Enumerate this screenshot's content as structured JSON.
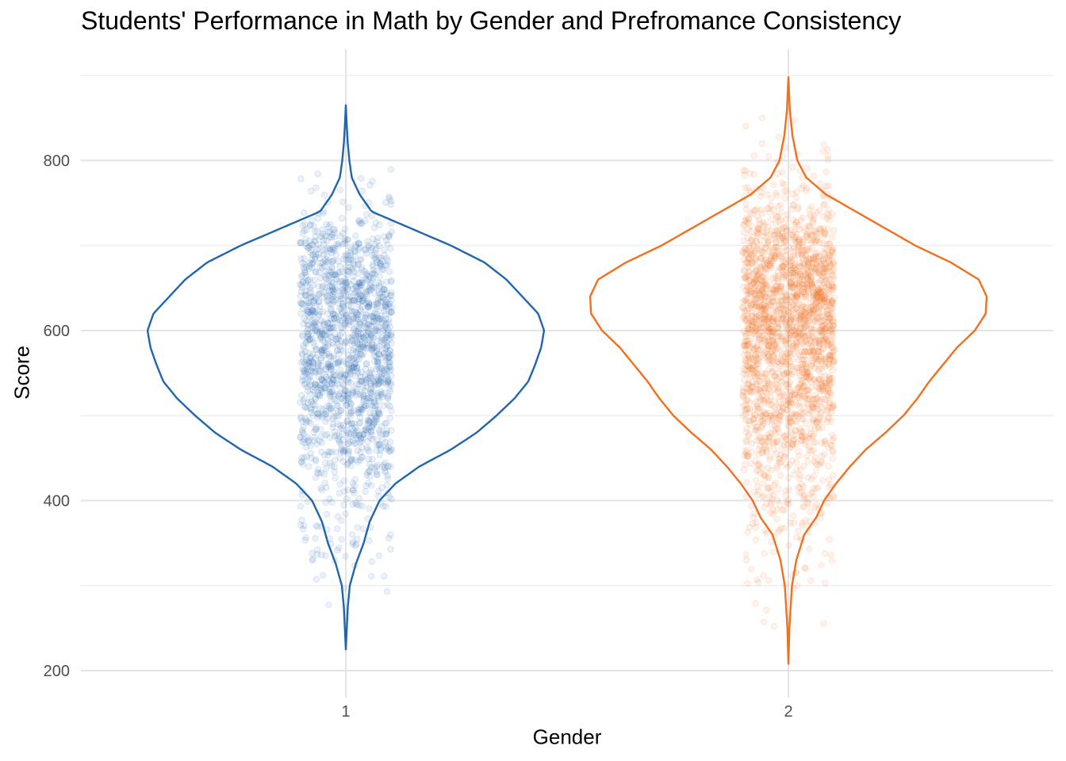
{
  "chart_data": {
    "type": "violin",
    "title": "Students' Performance in Math by Gender and Prefromance Consistency",
    "xlabel": "Gender",
    "ylabel": "Score",
    "categories": [
      "1",
      "2"
    ],
    "ylim": [
      185,
      915
    ],
    "y_ticks": [
      200,
      400,
      600,
      800
    ],
    "y_minor_ticks": [
      300,
      500,
      700,
      900
    ],
    "grid": true,
    "series": [
      {
        "category": "1",
        "color": "#2166ac",
        "min": 225,
        "max": 865,
        "jitter_seed": 7,
        "n_points": 1600,
        "density": [
          [
            225,
            0.0
          ],
          [
            250,
            0.005
          ],
          [
            275,
            0.01
          ],
          [
            300,
            0.02
          ],
          [
            325,
            0.05
          ],
          [
            350,
            0.09
          ],
          [
            375,
            0.12
          ],
          [
            400,
            0.17
          ],
          [
            420,
            0.25
          ],
          [
            440,
            0.37
          ],
          [
            460,
            0.53
          ],
          [
            480,
            0.66
          ],
          [
            500,
            0.76
          ],
          [
            520,
            0.85
          ],
          [
            540,
            0.92
          ],
          [
            560,
            0.955
          ],
          [
            580,
            0.985
          ],
          [
            600,
            1.0
          ],
          [
            620,
            0.97
          ],
          [
            640,
            0.89
          ],
          [
            660,
            0.81
          ],
          [
            680,
            0.7
          ],
          [
            700,
            0.53
          ],
          [
            720,
            0.33
          ],
          [
            740,
            0.13
          ],
          [
            760,
            0.07
          ],
          [
            780,
            0.03
          ],
          [
            800,
            0.018
          ],
          [
            820,
            0.01
          ],
          [
            840,
            0.005
          ],
          [
            865,
            0.0
          ]
        ]
      },
      {
        "category": "2",
        "color": "#f07020",
        "min": 208,
        "max": 898,
        "jitter_seed": 13,
        "n_points": 2200,
        "density": [
          [
            208,
            0.0
          ],
          [
            250,
            0.005
          ],
          [
            300,
            0.018
          ],
          [
            330,
            0.04
          ],
          [
            360,
            0.08
          ],
          [
            380,
            0.14
          ],
          [
            400,
            0.18
          ],
          [
            420,
            0.24
          ],
          [
            440,
            0.31
          ],
          [
            460,
            0.39
          ],
          [
            480,
            0.49
          ],
          [
            500,
            0.58
          ],
          [
            520,
            0.65
          ],
          [
            540,
            0.71
          ],
          [
            560,
            0.78
          ],
          [
            580,
            0.85
          ],
          [
            600,
            0.94
          ],
          [
            620,
            0.995
          ],
          [
            640,
            1.0
          ],
          [
            660,
            0.96
          ],
          [
            680,
            0.82
          ],
          [
            700,
            0.64
          ],
          [
            720,
            0.49
          ],
          [
            740,
            0.34
          ],
          [
            760,
            0.19
          ],
          [
            780,
            0.09
          ],
          [
            800,
            0.045
          ],
          [
            830,
            0.02
          ],
          [
            860,
            0.007
          ],
          [
            898,
            0.0
          ]
        ]
      }
    ]
  }
}
